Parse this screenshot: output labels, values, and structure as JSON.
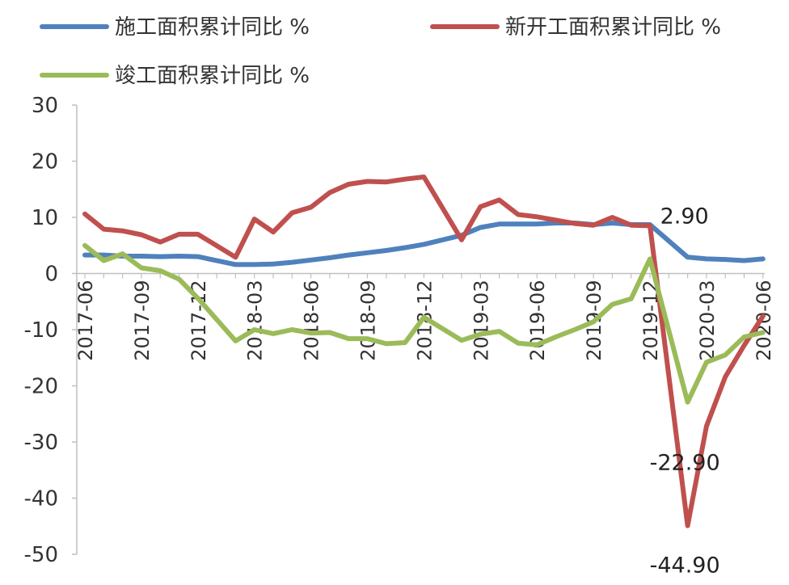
{
  "chart_data": {
    "type": "line",
    "title": "",
    "xlabel": "",
    "ylabel": "",
    "ylim": [
      -50,
      30
    ],
    "yticks": [
      30,
      20,
      10,
      0,
      -10,
      -20,
      -30,
      -40,
      -50
    ],
    "grid": false,
    "legend_position": "top",
    "x": [
      "2017-06",
      "2017-07",
      "2017-08",
      "2017-09",
      "2017-10",
      "2017-11",
      "2017-12",
      "2018-01",
      "2018-02",
      "2018-03",
      "2018-04",
      "2018-05",
      "2018-06",
      "2018-07",
      "2018-08",
      "2018-09",
      "2018-10",
      "2018-11",
      "2018-12",
      "2019-01",
      "2019-02",
      "2019-03",
      "2019-04",
      "2019-05",
      "2019-06",
      "2019-07",
      "2019-08",
      "2019-09",
      "2019-10",
      "2019-11",
      "2019-12",
      "2020-01",
      "2020-02",
      "2020-03",
      "2020-04",
      "2020-05",
      "2020-06"
    ],
    "x_tick_labels": [
      "2017-06",
      "2017-09",
      "2017-12",
      "2018-03",
      "2018-06",
      "2018-09",
      "2018-12",
      "2019-03",
      "2019-06",
      "2019-09",
      "2019-12",
      "2020-03",
      "2020-06"
    ],
    "series": [
      {
        "name": "施工面积累计同比 %",
        "color": "#4F81BD",
        "values": [
          3.3,
          3.3,
          3.1,
          3.1,
          3.0,
          3.1,
          3.0,
          null,
          1.6,
          1.6,
          1.7,
          2.0,
          2.4,
          2.8,
          3.3,
          3.7,
          4.1,
          4.6,
          5.2,
          null,
          6.8,
          8.2,
          8.8,
          8.8,
          8.8,
          9.0,
          9.0,
          8.7,
          9.0,
          8.7,
          8.7,
          null,
          2.9,
          2.6,
          2.5,
          2.3,
          2.6
        ]
      },
      {
        "name": "新开工面积累计同比 %",
        "color": "#C0504D",
        "values": [
          10.6,
          7.9,
          7.6,
          6.9,
          5.6,
          7.0,
          7.0,
          null,
          2.9,
          9.7,
          7.4,
          10.8,
          11.8,
          14.4,
          15.9,
          16.4,
          16.3,
          16.8,
          17.2,
          null,
          6.0,
          11.9,
          13.1,
          10.5,
          10.1,
          9.5,
          8.9,
          8.6,
          10.0,
          8.6,
          8.5,
          null,
          -44.9,
          -27.2,
          -18.4,
          -12.8,
          -7.6
        ]
      },
      {
        "name": "竣工面积累计同比 %",
        "color": "#9BBB59",
        "values": [
          5.0,
          2.3,
          3.5,
          1.0,
          0.5,
          -1.0,
          -4.4,
          null,
          -12.0,
          -10.0,
          -10.7,
          -10.0,
          -10.6,
          -10.5,
          -11.6,
          -11.6,
          -12.5,
          -12.3,
          -7.8,
          null,
          -11.9,
          -10.8,
          -10.3,
          -12.4,
          -12.7,
          -11.3,
          -10.0,
          -8.6,
          -5.5,
          -4.5,
          2.6,
          null,
          -22.9,
          -15.8,
          -14.5,
          -11.3,
          -10.5
        ]
      }
    ],
    "annotations": [
      {
        "text": "2.90",
        "x": "2020-02",
        "y": 2.9
      },
      {
        "text": "-22.90",
        "x": "2020-02",
        "y": -22.9
      },
      {
        "text": "-44.90",
        "x": "2020-02",
        "y": -44.9
      }
    ]
  }
}
